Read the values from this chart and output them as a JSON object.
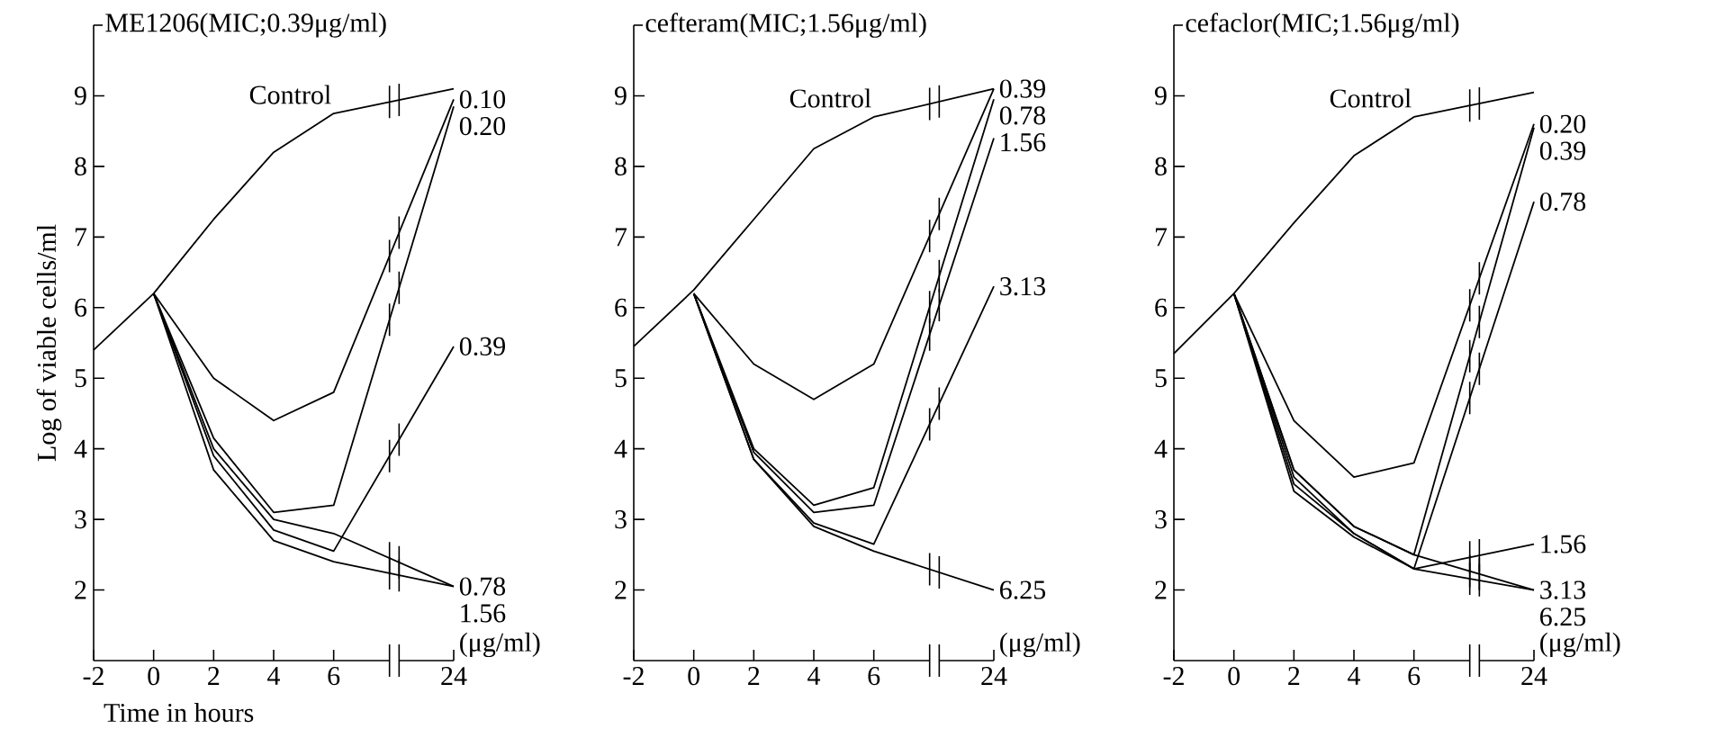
{
  "chart_data": [
    {
      "type": "line",
      "title": "ME1206(MIC;0.39μg/ml)",
      "xlabel": "Time in hours",
      "ylabel": "Log of viable cells/ml",
      "annotations": [
        "(μg/ml)"
      ],
      "marker": "none",
      "legend": "right",
      "categories": [
        "-2",
        "0",
        "2",
        "4",
        "6",
        null,
        "24"
      ],
      "ylim": [
        1,
        10
      ],
      "yticks": [
        2,
        3,
        4,
        5,
        6,
        7,
        8,
        9
      ],
      "series": [
        {
          "name": "Control",
          "color": "#000000",
          "values": [
            5.4,
            6.2,
            7.25,
            8.2,
            8.75,
            null,
            9.1
          ]
        },
        {
          "name": "0.10",
          "color": "#000000",
          "values": [
            null,
            6.2,
            5.0,
            4.4,
            4.8,
            null,
            8.95
          ]
        },
        {
          "name": "0.20",
          "color": "#000000",
          "values": [
            null,
            6.2,
            4.15,
            3.1,
            3.2,
            null,
            8.85
          ]
        },
        {
          "name": "0.39",
          "color": "#000000",
          "values": [
            null,
            6.2,
            3.9,
            2.85,
            2.55,
            null,
            5.45
          ]
        },
        {
          "name": "0.78",
          "color": "#000000",
          "values": [
            null,
            6.2,
            4.0,
            3.0,
            2.8,
            null,
            2.05
          ]
        },
        {
          "name": "1.56",
          "color": "#000000",
          "values": [
            null,
            6.2,
            3.7,
            2.7,
            2.4,
            null,
            2.05
          ]
        }
      ]
    },
    {
      "type": "line",
      "title": "cefteram(MIC;1.56μg/ml)",
      "annotations": [
        "(μg/ml)"
      ],
      "marker": "none",
      "legend": "right",
      "categories": [
        "-2",
        "0",
        "2",
        "4",
        "6",
        null,
        "24"
      ],
      "ylim": [
        1,
        10
      ],
      "yticks": [
        2,
        3,
        4,
        5,
        6,
        7,
        8,
        9
      ],
      "series": [
        {
          "name": "Control",
          "color": "#000000",
          "values": [
            5.45,
            6.25,
            7.25,
            8.25,
            8.7,
            null,
            9.1
          ]
        },
        {
          "name": "0.39",
          "color": "#000000",
          "values": [
            null,
            6.2,
            5.2,
            4.7,
            5.2,
            null,
            9.1
          ]
        },
        {
          "name": "0.78",
          "color": "#000000",
          "values": [
            null,
            6.2,
            4.0,
            3.2,
            3.45,
            null,
            8.95
          ]
        },
        {
          "name": "1.56",
          "color": "#000000",
          "values": [
            null,
            6.2,
            3.95,
            3.1,
            3.2,
            null,
            8.4
          ]
        },
        {
          "name": "3.13",
          "color": "#000000",
          "values": [
            null,
            6.2,
            3.85,
            2.95,
            2.65,
            null,
            6.3
          ]
        },
        {
          "name": "6.25",
          "color": "#000000",
          "values": [
            null,
            6.2,
            3.85,
            2.9,
            2.55,
            null,
            2.0
          ]
        }
      ]
    },
    {
      "type": "line",
      "title": "cefaclor(MIC;1.56μg/ml)",
      "annotations": [
        "(μg/ml)"
      ],
      "marker": "none",
      "legend": "right",
      "categories": [
        "-2",
        "0",
        "2",
        "4",
        "6",
        null,
        "24"
      ],
      "ylim": [
        1,
        10
      ],
      "yticks": [
        2,
        3,
        4,
        5,
        6,
        7,
        8,
        9
      ],
      "series": [
        {
          "name": "Control",
          "color": "#000000",
          "values": [
            5.35,
            6.2,
            7.2,
            8.15,
            8.7,
            null,
            9.05
          ]
        },
        {
          "name": "0.20",
          "color": "#000000",
          "values": [
            null,
            6.2,
            4.4,
            3.6,
            3.8,
            null,
            8.6
          ]
        },
        {
          "name": "0.39",
          "color": "#000000",
          "values": [
            null,
            6.2,
            3.7,
            2.9,
            2.5,
            null,
            8.55
          ]
        },
        {
          "name": "0.78",
          "color": "#000000",
          "values": [
            null,
            6.2,
            3.6,
            2.8,
            2.3,
            null,
            7.5
          ]
        },
        {
          "name": "1.56",
          "color": "#000000",
          "values": [
            null,
            6.2,
            3.5,
            2.8,
            2.3,
            null,
            2.65
          ]
        },
        {
          "name": "3.13",
          "color": "#000000",
          "values": [
            null,
            6.2,
            3.7,
            2.9,
            2.5,
            null,
            2.0
          ]
        },
        {
          "name": "6.25",
          "color": "#000000",
          "values": [
            null,
            6.2,
            3.4,
            2.75,
            2.3,
            null,
            2.0
          ]
        }
      ]
    }
  ]
}
